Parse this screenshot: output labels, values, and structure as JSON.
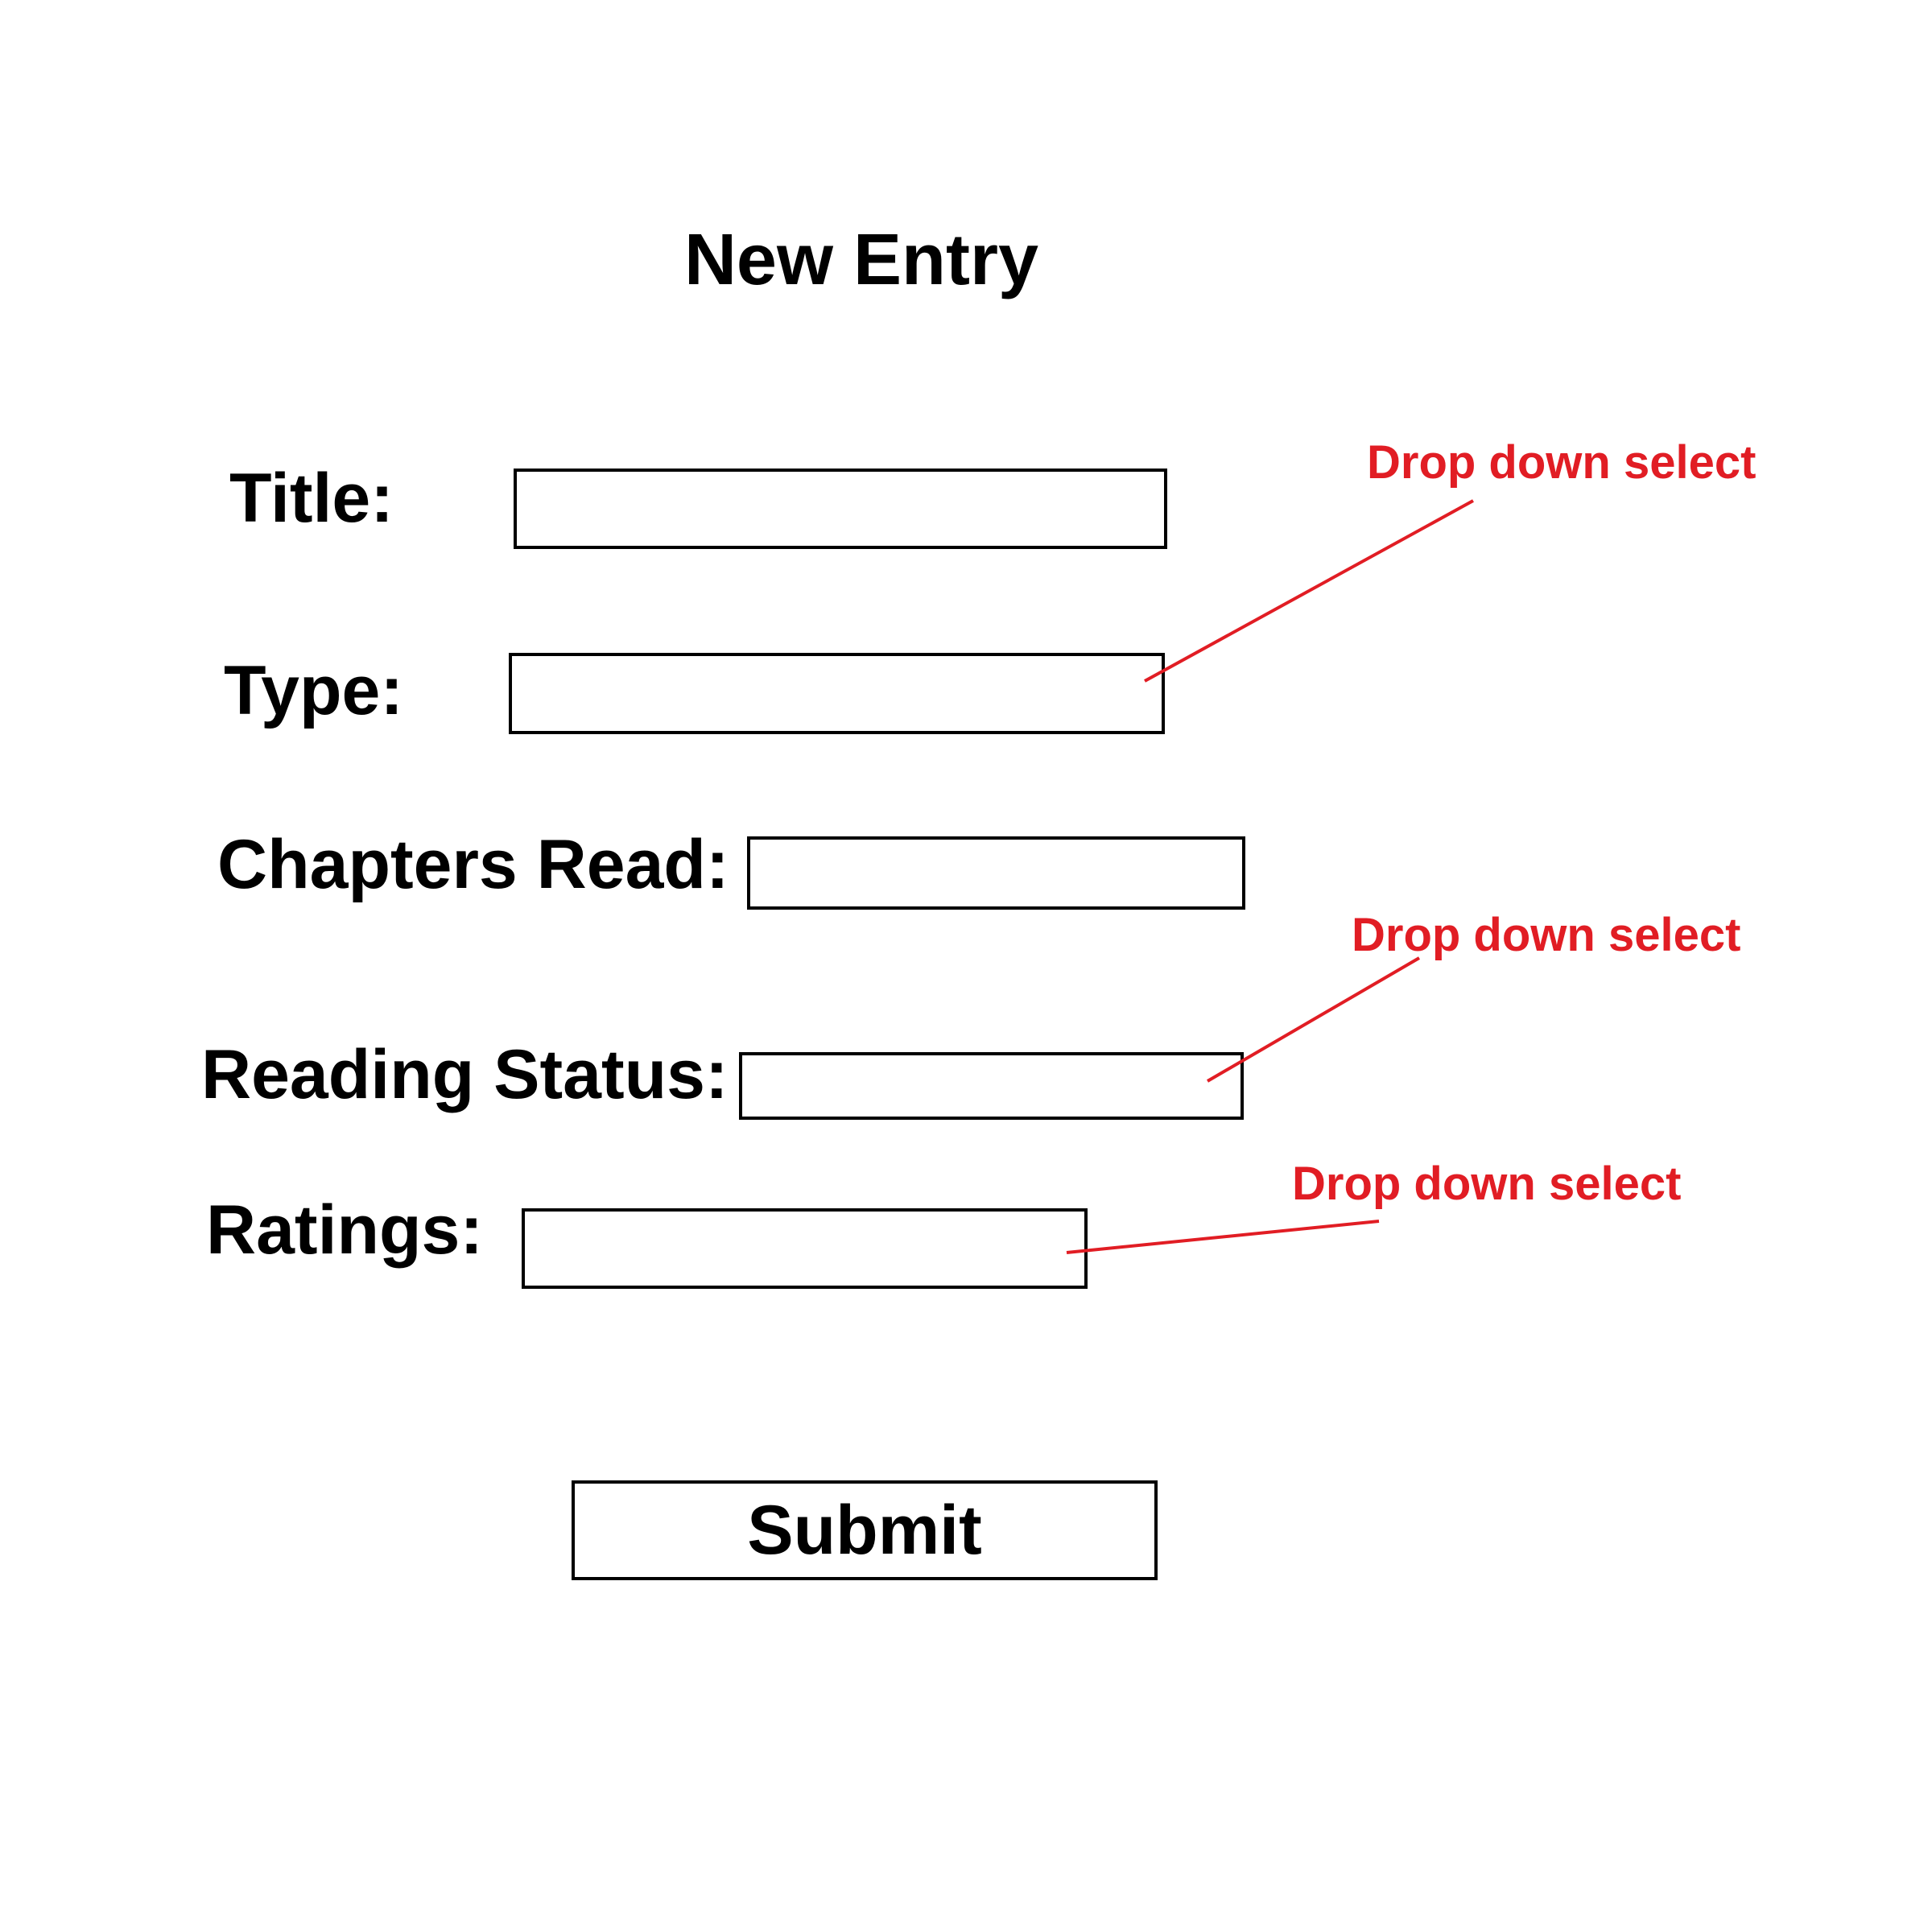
{
  "form": {
    "heading": "New Entry",
    "fields": {
      "title": {
        "label": "Title:",
        "value": ""
      },
      "type": {
        "label": "Type:",
        "value": ""
      },
      "chapters_read": {
        "label": "Chapters Read:",
        "value": ""
      },
      "reading_status": {
        "label": "Reading Status:",
        "value": ""
      },
      "ratings": {
        "label": "Ratings:",
        "value": ""
      }
    },
    "submit_label": "Submit"
  },
  "annotations": {
    "type_note": "Drop down select",
    "reading_status_note": "Drop down select",
    "ratings_note": "Drop down select",
    "color": "#e11d24"
  }
}
